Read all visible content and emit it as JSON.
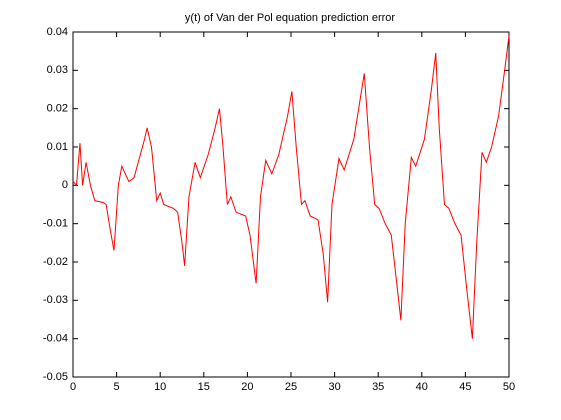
{
  "chart_data": {
    "type": "line",
    "title": "y(t) of Van der Pol equation prediction error",
    "x": [
      0,
      0.4,
      0.8,
      1.1,
      1.5,
      2.0,
      2.5,
      3.5,
      3.8,
      4.3,
      4.7,
      5.2,
      5.6,
      6.4,
      7.0,
      7.6,
      8.2,
      8.5,
      9.0,
      9.6,
      10.0,
      10.4,
      11.5,
      12.0,
      12.5,
      12.8,
      13.3,
      14.0,
      14.6,
      15.5,
      16.3,
      16.8,
      17.2,
      17.7,
      18.1,
      18.7,
      19.8,
      20.3,
      20.8,
      21.0,
      21.5,
      22.1,
      22.8,
      23.6,
      24.6,
      25.1,
      25.6,
      26.2,
      26.6,
      27.2,
      28.1,
      28.7,
      29.2,
      29.7,
      30.5,
      31.1,
      32.2,
      32.9,
      33.4,
      34.0,
      34.6,
      35.1,
      35.8,
      36.5,
      37.1,
      37.6,
      38.1,
      38.8,
      39.3,
      40.3,
      41.1,
      41.6,
      42.0,
      42.6,
      43.1,
      43.8,
      44.5,
      45.2,
      45.8,
      46.3,
      46.9,
      47.4,
      48.0,
      48.8,
      49.5,
      50
    ],
    "series": [
      {
        "color": "#ff0000",
        "values": [
          0.001,
          0.0,
          0.011,
          0.0,
          0.006,
          0.0,
          -0.004,
          -0.0045,
          -0.005,
          -0.012,
          -0.017,
          0.0,
          0.005,
          0.001,
          0.002,
          0.007,
          0.012,
          0.015,
          0.01,
          -0.004,
          -0.002,
          -0.005,
          -0.006,
          -0.007,
          -0.015,
          -0.021,
          -0.003,
          0.006,
          0.002,
          0.008,
          0.015,
          0.02,
          0.01,
          -0.005,
          -0.003,
          -0.007,
          -0.008,
          -0.013,
          -0.022,
          -0.0256,
          -0.003,
          0.0065,
          0.003,
          0.008,
          0.018,
          0.0245,
          0.01,
          -0.005,
          -0.004,
          -0.008,
          -0.009,
          -0.018,
          -0.0305,
          -0.005,
          0.007,
          0.004,
          0.012,
          0.022,
          0.0292,
          0.01,
          -0.005,
          -0.006,
          -0.01,
          -0.013,
          -0.025,
          -0.0352,
          -0.01,
          0.0073,
          0.005,
          0.012,
          0.025,
          0.0345,
          0.015,
          -0.005,
          -0.006,
          -0.01,
          -0.013,
          -0.028,
          -0.04,
          -0.015,
          0.0086,
          0.006,
          0.01,
          0.018,
          0.03,
          0.039
        ]
      }
    ],
    "xlim": [
      0,
      50
    ],
    "xticks": [
      0,
      5,
      10,
      15,
      20,
      25,
      30,
      35,
      40,
      45,
      50
    ],
    "ylim": [
      -0.05,
      0.04
    ],
    "yticks": [
      -0.05,
      -0.04,
      -0.03,
      -0.02,
      -0.01,
      0,
      0.01,
      0.02,
      0.03,
      0.04
    ]
  }
}
